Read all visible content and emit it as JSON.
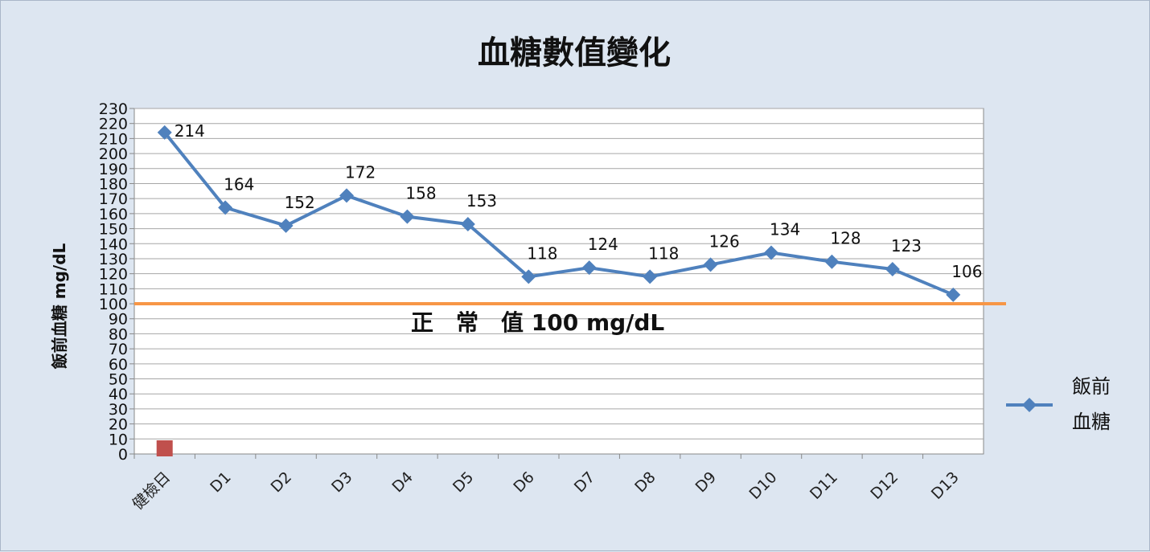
{
  "chart_data": {
    "type": "line",
    "title": "血糖數值變化",
    "ylabel": "飯前血糖 mg/dL",
    "xlabel": "",
    "ylim": [
      0,
      230
    ],
    "yticks": [
      0,
      10,
      20,
      30,
      40,
      50,
      60,
      70,
      80,
      90,
      100,
      110,
      120,
      130,
      140,
      150,
      160,
      170,
      180,
      190,
      200,
      210,
      220,
      230
    ],
    "grid": true,
    "legend_position": "right",
    "categories": [
      "健檢日",
      "D1",
      "D2",
      "D3",
      "D4",
      "D5",
      "D6",
      "D7",
      "D8",
      "D9",
      "D10",
      "D11",
      "D12",
      "D13"
    ],
    "series": [
      {
        "name": "飯前血糖",
        "legend_lines": [
          "飯前",
          "血糖"
        ],
        "color": "#4f81bd",
        "values": [
          214,
          164,
          152,
          172,
          158,
          153,
          118,
          124,
          118,
          126,
          134,
          128,
          123,
          106
        ],
        "labels": [
          "214",
          "164",
          "152",
          "172",
          "158",
          "153",
          "118",
          "124",
          "118",
          "126",
          "134",
          "128",
          "123",
          "106"
        ]
      }
    ],
    "reference_line": {
      "value": 100,
      "label": "正　常　值  100 mg/dL",
      "color": "#f79646"
    },
    "marker_point": {
      "category": "健檢日",
      "value": 0,
      "color": "#c0504d"
    }
  }
}
